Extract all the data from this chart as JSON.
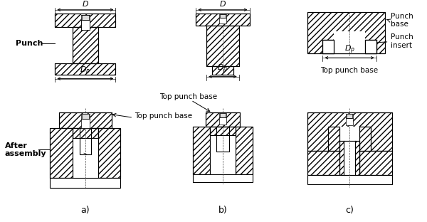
{
  "bg_color": "#ffffff",
  "line_color": "#000000",
  "fig_width": 6.0,
  "fig_height": 3.12,
  "dpi": 100,
  "labels": {
    "punch": "Punch",
    "after_assembly": "After\nassembly",
    "top_punch_base": "Top punch base",
    "top_punch_base_c": "Top punch base",
    "punch_base": "Punch\nbase",
    "punch_insert": "Punch\ninsert",
    "a": "a)",
    "b": "b)",
    "c": "c)"
  }
}
